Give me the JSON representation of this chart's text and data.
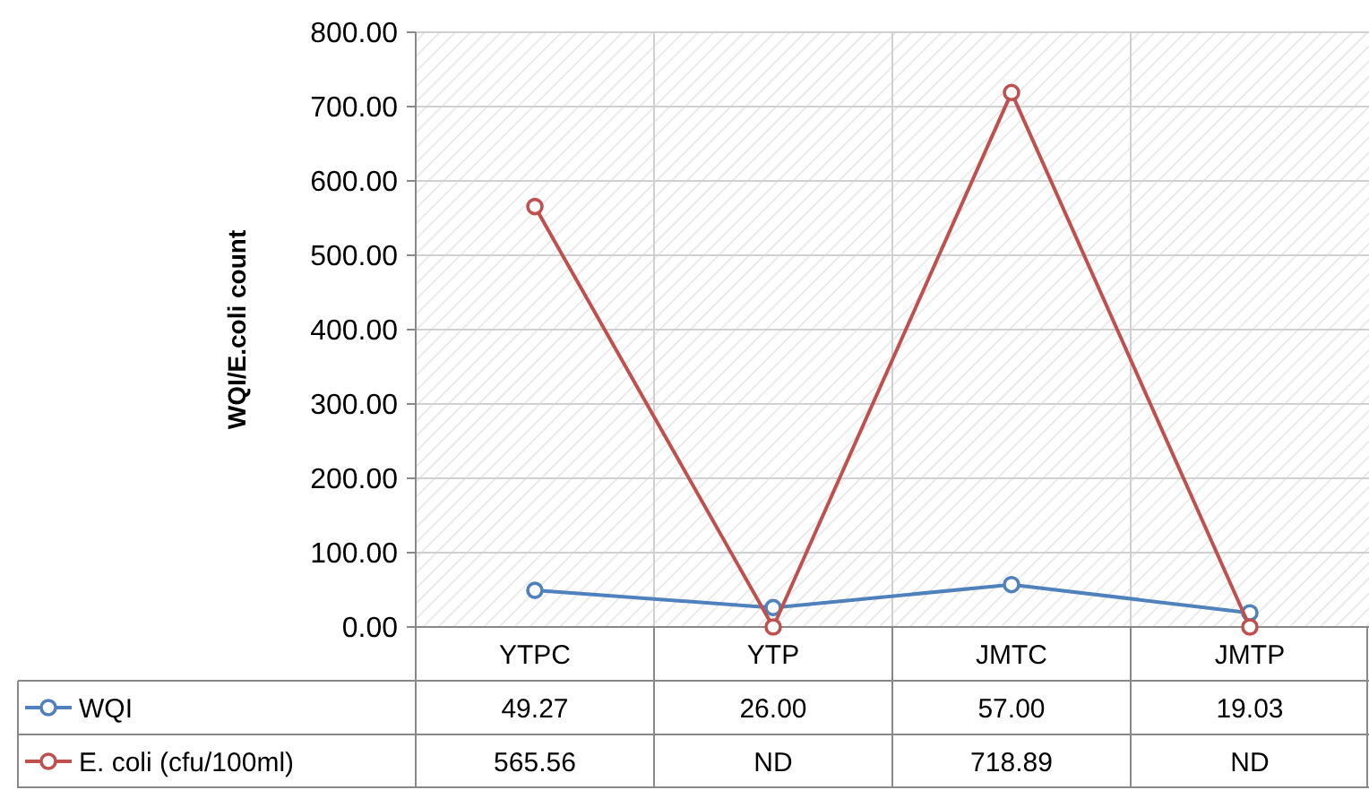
{
  "chart_data": {
    "type": "line",
    "ylabel": "WQI/E.coli count",
    "categories": [
      "YTPC",
      "YTP",
      "JMTC",
      "JMTP"
    ],
    "ylim": [
      0,
      800
    ],
    "yticks": [
      {
        "value": 0,
        "label": "0.00"
      },
      {
        "value": 100,
        "label": "100.00"
      },
      {
        "value": 200,
        "label": "200.00"
      },
      {
        "value": 300,
        "label": "300.00"
      },
      {
        "value": 400,
        "label": "400.00"
      },
      {
        "value": 500,
        "label": "500.00"
      },
      {
        "value": 600,
        "label": "600.00"
      },
      {
        "value": 700,
        "label": "700.00"
      },
      {
        "value": 800,
        "label": "800.00"
      }
    ],
    "grid": true,
    "legend": "bottom",
    "marker": "circle",
    "line_style": "solid",
    "series": [
      {
        "name": "WQI",
        "color": "#4f81bd",
        "values": [
          49.27,
          26.0,
          57.0,
          19.03
        ],
        "value_labels": [
          "49.27",
          "26.00",
          "57.00",
          "19.03"
        ]
      },
      {
        "name": "E. coli (cfu/100ml)",
        "color": "#c0504d",
        "values": [
          565.56,
          0,
          718.89,
          0
        ],
        "value_labels": [
          "565.56",
          "ND",
          "718.89",
          "ND"
        ]
      }
    ]
  }
}
